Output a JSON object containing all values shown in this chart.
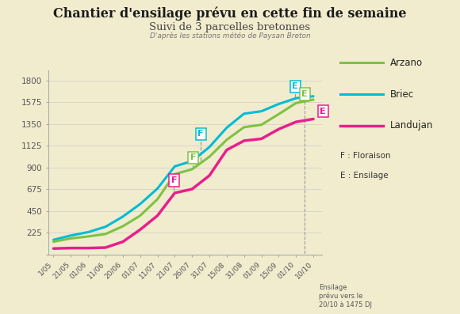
{
  "title": "Chantier d'ensilage prévu en cette fin de semaine",
  "subtitle": "Suivi de 3 parcelles bretonnes",
  "subtitle2": "D'après les stations météo de Paysan Breton",
  "background_color": "#f2ecce",
  "x_labels": [
    "1/05",
    "21/05",
    "01/06",
    "11/06",
    "20/06",
    "01/07",
    "11/07",
    "21/07",
    "26/07",
    "31/07",
    "15/08",
    "31/08",
    "01/09",
    "15/09",
    "01/10",
    "10/10"
  ],
  "arzano": [
    130,
    165,
    185,
    210,
    290,
    400,
    570,
    830,
    880,
    1010,
    1185,
    1315,
    1340,
    1450,
    1565,
    1600
  ],
  "briec": [
    150,
    195,
    230,
    285,
    390,
    520,
    680,
    910,
    965,
    1110,
    1310,
    1455,
    1480,
    1555,
    1615,
    1635
  ],
  "landujan": [
    60,
    65,
    65,
    70,
    130,
    255,
    400,
    635,
    675,
    815,
    1080,
    1175,
    1195,
    1295,
    1370,
    1400
  ],
  "arzano_color": "#7dc243",
  "briec_color": "#00bcd4",
  "landujan_color": "#e91e8c",
  "ylim": [
    0,
    1900
  ],
  "yticks": [
    0,
    225,
    450,
    675,
    900,
    1125,
    1350,
    1575,
    1800
  ],
  "floraison_note": "F : Floraison",
  "ensilage_note": "E : Ensilage",
  "annotation_text": "Ensilage\nprévu vers le\n20/10 à 1475 DJ"
}
